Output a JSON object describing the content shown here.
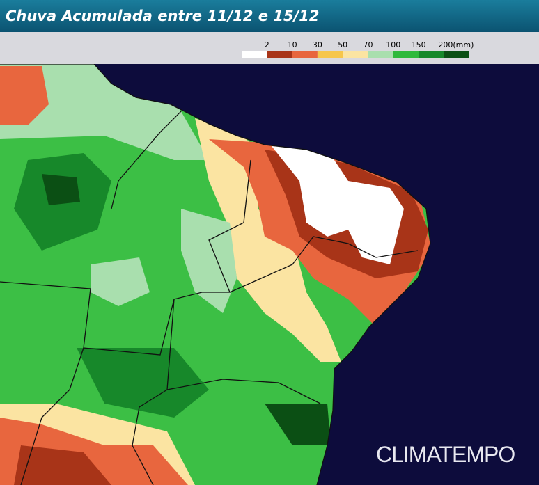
{
  "header": {
    "title": "Chuva Acumulada entre 11/12 e 15/12"
  },
  "legend": {
    "labels": [
      "2",
      "10",
      "30",
      "50",
      "70",
      "100",
      "150",
      "200(mm)"
    ],
    "colors": [
      "#ffffff",
      "#a83418",
      "#e8663e",
      "#f6c64c",
      "#fbe4a2",
      "#a9dfae",
      "#2fb93c",
      "#17882a",
      "#0b4f14"
    ]
  },
  "brand": "CLIMATEMPO"
}
